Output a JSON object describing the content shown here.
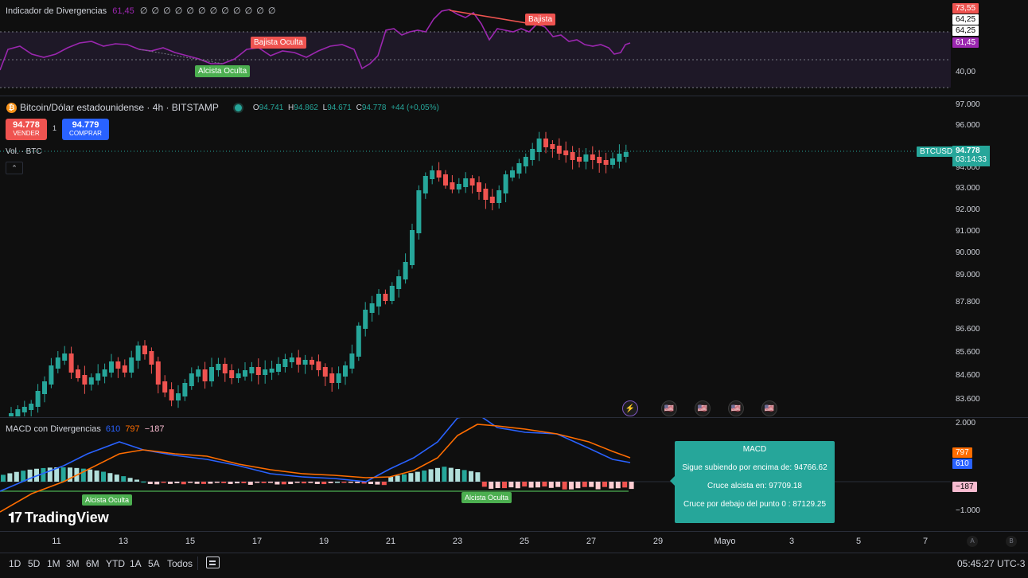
{
  "rsi": {
    "title": "Indicador de Divergencias",
    "value": "61,45",
    "placeholders": "∅ ∅ ∅ ∅ ∅ ∅ ∅ ∅ ∅ ∅ ∅ ∅",
    "labels": {
      "bajista_oculta": "Bajista Oculta",
      "alcista_oculta": "Alcista Oculta",
      "bajista": "Bajista"
    },
    "scale": {
      "t73": "73,55",
      "t64a": "64,25",
      "t64b": "64,25",
      "t61": "61,45",
      "t40": "40,00"
    }
  },
  "symbol": {
    "name": "Bitcoin/Dólar estadounidense · 4h · BITSTAMP",
    "o_label": "O",
    "o": "94.741",
    "h_label": "H",
    "h": "94.862",
    "l_label": "L",
    "l": "94.671",
    "c_label": "C",
    "c": "94.778",
    "change": "+44 (+0,05%)"
  },
  "trade": {
    "sell_price": "94.778",
    "sell_label": "VENDER",
    "spread": "1",
    "buy_price": "94.779",
    "buy_label": "COMPRAR"
  },
  "volume_label": "Vol. · BTC",
  "price_axis": [
    "97.000",
    "96.000",
    "94.000",
    "93.000",
    "92.000",
    "91.000",
    "90.000",
    "89.000",
    "87.800",
    "86.600",
    "85.600",
    "84.600",
    "83.600"
  ],
  "last_price": {
    "ticker": "BTCUSD",
    "price": "94.778",
    "countdown": "03:14:33"
  },
  "macd": {
    "title": "MACD con Divergencias",
    "v1": "610",
    "v2": "797",
    "v3": "−187",
    "scale_top": "2.000",
    "scale_bottom": "−1.000",
    "badges": {
      "b797": "797",
      "b610": "610",
      "bm187": "−187"
    },
    "labels": {
      "alcista1": "Alcista Oculta",
      "alcista2": "Alcista Oculta"
    },
    "tooltip": {
      "title": "MACD",
      "line1": "Sigue subiendo por encima de: 94766.62",
      "line2": "Cruce alcista en: 97709.18",
      "line3": "Cruce por debajo del punto 0 : 87129.25"
    }
  },
  "time_axis": [
    "11",
    "13",
    "15",
    "17",
    "19",
    "21",
    "23",
    "25",
    "27",
    "29",
    "Mayo",
    "3",
    "5",
    "7"
  ],
  "timeframes": [
    "1D",
    "5D",
    "1M",
    "3M",
    "6M",
    "YTD",
    "1A",
    "5A",
    "Todos"
  ],
  "clock": "05:45:27 UTC-3",
  "brand": "TradingView",
  "axis_buttons": {
    "a": "A",
    "b": "B"
  },
  "colors": {
    "up": "#26a69a",
    "down": "#ef5350",
    "rsi": "#9c27b0",
    "macd_line": "#2962ff",
    "signal_line": "#ff6d00",
    "tooltip_bg": "#26a69a"
  }
}
